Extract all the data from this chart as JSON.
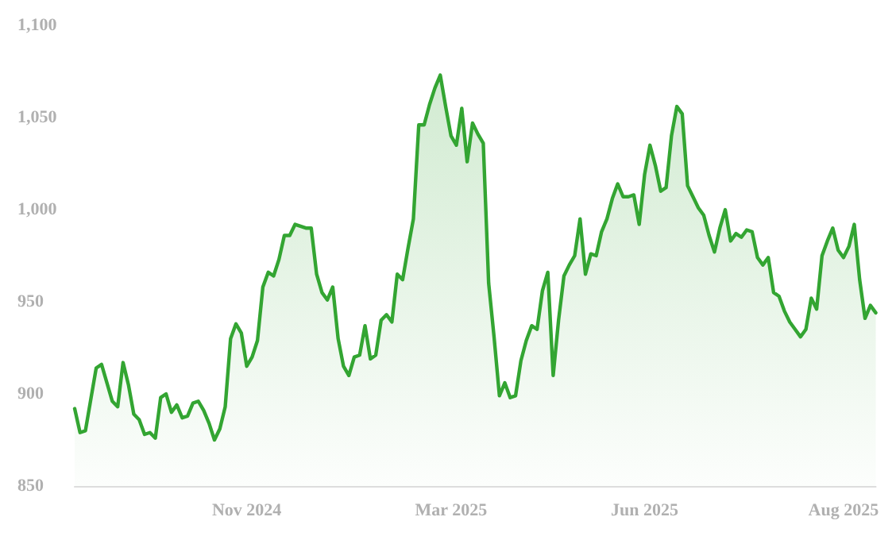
{
  "chart_data": {
    "type": "area",
    "color": "#33a532",
    "categories": [
      null,
      null,
      null,
      null,
      null,
      null,
      null,
      null,
      null,
      null,
      null,
      null,
      null,
      null,
      null,
      null,
      null,
      null,
      null,
      null,
      null,
      null,
      null,
      null,
      null,
      null,
      null,
      null,
      null,
      null,
      null,
      null,
      "Nov 2024",
      null,
      null,
      null,
      null,
      null,
      null,
      null,
      null,
      null,
      null,
      null,
      null,
      null,
      null,
      null,
      null,
      null,
      null,
      null,
      null,
      null,
      null,
      null,
      null,
      null,
      null,
      null,
      null,
      null,
      null,
      null,
      null,
      null,
      null,
      null,
      null,
      null,
      "Mar 2025",
      null,
      null,
      null,
      null,
      null,
      null,
      null,
      null,
      null,
      null,
      null,
      null,
      null,
      null,
      null,
      null,
      null,
      null,
      null,
      null,
      null,
      null,
      null,
      null,
      null,
      null,
      null,
      null,
      null,
      null,
      null,
      null,
      null,
      null,
      null,
      "Jun 2025",
      null,
      null,
      null,
      null,
      null,
      null,
      null,
      null,
      null,
      null,
      null,
      null,
      null,
      null,
      null,
      null,
      null,
      null,
      null,
      null,
      null,
      null,
      null,
      null,
      null,
      null,
      null,
      null,
      null,
      null,
      null,
      null,
      null,
      null,
      null,
      null,
      "Aug 2025",
      null,
      null,
      null,
      null,
      null,
      null
    ],
    "values": [
      892,
      879,
      880,
      897,
      914,
      916,
      906,
      896,
      893,
      917,
      905,
      889,
      886,
      878,
      879,
      876,
      898,
      900,
      890,
      894,
      887,
      888,
      895,
      896,
      891,
      884,
      875,
      881,
      893,
      930,
      938,
      933,
      915,
      920,
      929,
      958,
      966,
      964,
      973,
      986,
      986,
      992,
      991,
      990,
      990,
      965,
      955,
      951,
      958,
      930,
      915,
      910,
      920,
      921,
      937,
      919,
      921,
      940,
      943,
      939,
      965,
      962,
      979,
      995,
      1046,
      1046,
      1057,
      1066,
      1073,
      1056,
      1040,
      1035,
      1055,
      1026,
      1047,
      1041,
      1036,
      960,
      931,
      899,
      906,
      898,
      899,
      918,
      929,
      937,
      935,
      956,
      966,
      910,
      940,
      964,
      970,
      975,
      995,
      965,
      976,
      975,
      988,
      995,
      1006,
      1014,
      1007,
      1007,
      1008,
      992,
      1019,
      1035,
      1024,
      1010,
      1012,
      1040,
      1056,
      1052,
      1013,
      1007,
      1001,
      997,
      986,
      977,
      990,
      1000,
      983,
      987,
      985,
      989,
      988,
      974,
      970,
      974,
      955,
      953,
      945,
      939,
      935,
      931,
      935,
      952,
      946,
      975,
      983,
      990,
      978,
      974,
      980,
      992,
      962,
      941,
      948,
      944
    ],
    "ylim": [
      850,
      1100
    ],
    "yticks": [
      {
        "value": 850,
        "label": "850"
      },
      {
        "value": 900,
        "label": "900"
      },
      {
        "value": 950,
        "label": "950"
      },
      {
        "value": 1000,
        "label": "1,000"
      },
      {
        "value": 1050,
        "label": "1,050"
      },
      {
        "value": 1100,
        "label": "1,100"
      }
    ],
    "grid": false,
    "marker": "none",
    "line_style": "solid"
  }
}
